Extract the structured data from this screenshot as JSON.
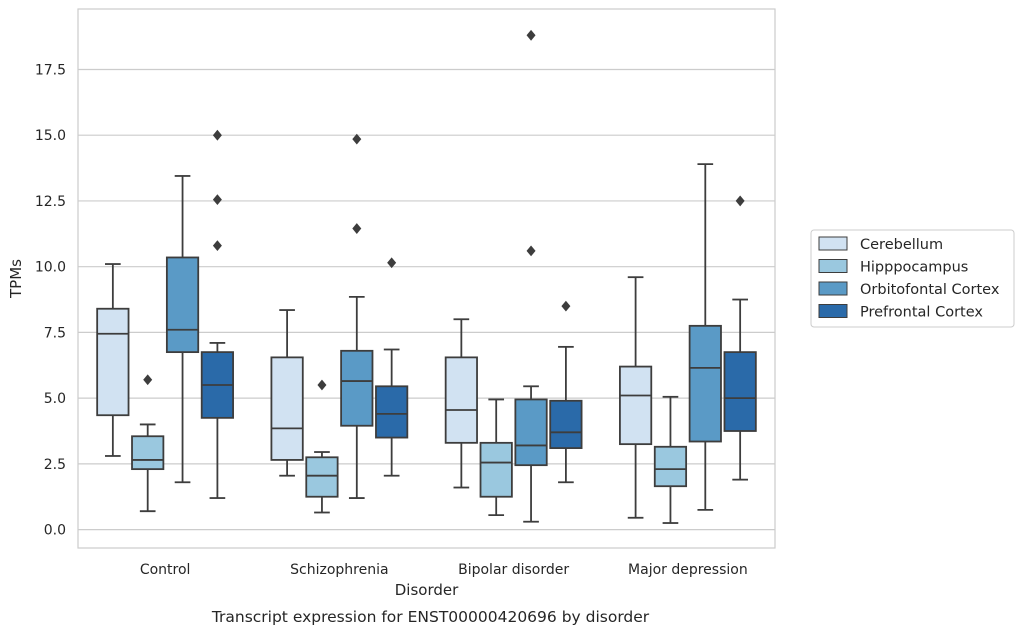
{
  "chart_data": {
    "type": "box",
    "caption": "Transcript expression for ENST00000420696 by disorder",
    "xlabel": "Disorder",
    "ylabel": "TPMs",
    "ylim": [
      -0.7,
      19.8
    ],
    "yticks": [
      0.0,
      2.5,
      5.0,
      7.5,
      10.0,
      12.5,
      15.0,
      17.5
    ],
    "ytick_labels": [
      "0.0",
      "2.5",
      "5.0",
      "7.5",
      "10.0",
      "12.5",
      "15.0",
      "17.5"
    ],
    "grid": true,
    "legend_position": "right",
    "categories": [
      "Control",
      "Schizophrenia",
      "Bipolar disorder",
      "Major depression"
    ],
    "series": [
      {
        "name": "Cerebellum",
        "color": "#d1e2f2",
        "boxes": [
          {
            "q1": 4.35,
            "median": 7.45,
            "q3": 8.4,
            "whisker_low": 2.8,
            "whisker_high": 10.1,
            "outliers": []
          },
          {
            "q1": 2.65,
            "median": 3.85,
            "q3": 6.55,
            "whisker_low": 2.05,
            "whisker_high": 8.35,
            "outliers": []
          },
          {
            "q1": 3.3,
            "median": 4.55,
            "q3": 6.55,
            "whisker_low": 1.6,
            "whisker_high": 8.0,
            "outliers": []
          },
          {
            "q1": 3.25,
            "median": 5.1,
            "q3": 6.2,
            "whisker_low": 0.45,
            "whisker_high": 9.6,
            "outliers": []
          }
        ]
      },
      {
        "name": "Hipppocampus",
        "color": "#9ac8df",
        "boxes": [
          {
            "q1": 2.3,
            "median": 2.65,
            "q3": 3.55,
            "whisker_low": 0.7,
            "whisker_high": 4.0,
            "outliers": [
              5.7
            ]
          },
          {
            "q1": 1.25,
            "median": 2.05,
            "q3": 2.75,
            "whisker_low": 0.65,
            "whisker_high": 2.95,
            "outliers": [
              5.5
            ]
          },
          {
            "q1": 1.25,
            "median": 2.55,
            "q3": 3.3,
            "whisker_low": 0.55,
            "whisker_high": 4.95,
            "outliers": []
          },
          {
            "q1": 1.65,
            "median": 2.3,
            "q3": 3.15,
            "whisker_low": 0.25,
            "whisker_high": 5.05,
            "outliers": []
          }
        ]
      },
      {
        "name": "Orbitofontal Cortex",
        "color": "#5a9ac6",
        "boxes": [
          {
            "q1": 6.75,
            "median": 7.6,
            "q3": 10.35,
            "whisker_low": 1.8,
            "whisker_high": 13.45,
            "outliers": []
          },
          {
            "q1": 3.95,
            "median": 5.65,
            "q3": 6.8,
            "whisker_low": 1.2,
            "whisker_high": 8.85,
            "outliers": [
              11.45,
              14.85
            ]
          },
          {
            "q1": 2.45,
            "median": 3.2,
            "q3": 4.95,
            "whisker_low": 0.3,
            "whisker_high": 5.45,
            "outliers": [
              10.6,
              18.8
            ]
          },
          {
            "q1": 3.35,
            "median": 6.15,
            "q3": 7.75,
            "whisker_low": 0.75,
            "whisker_high": 13.9,
            "outliers": []
          }
        ]
      },
      {
        "name": "Prefrontal Cortex",
        "color": "#2a6aa9",
        "boxes": [
          {
            "q1": 4.25,
            "median": 5.5,
            "q3": 6.75,
            "whisker_low": 1.2,
            "whisker_high": 7.1,
            "outliers": [
              10.8,
              12.55,
              15.0
            ]
          },
          {
            "q1": 3.5,
            "median": 4.4,
            "q3": 5.45,
            "whisker_low": 2.05,
            "whisker_high": 6.85,
            "outliers": [
              10.15
            ]
          },
          {
            "q1": 3.1,
            "median": 3.7,
            "q3": 4.9,
            "whisker_low": 1.8,
            "whisker_high": 6.95,
            "outliers": [
              8.5
            ]
          },
          {
            "q1": 3.75,
            "median": 5.0,
            "q3": 6.75,
            "whisker_low": 1.9,
            "whisker_high": 8.75,
            "outliers": [
              12.5
            ]
          }
        ]
      }
    ]
  }
}
